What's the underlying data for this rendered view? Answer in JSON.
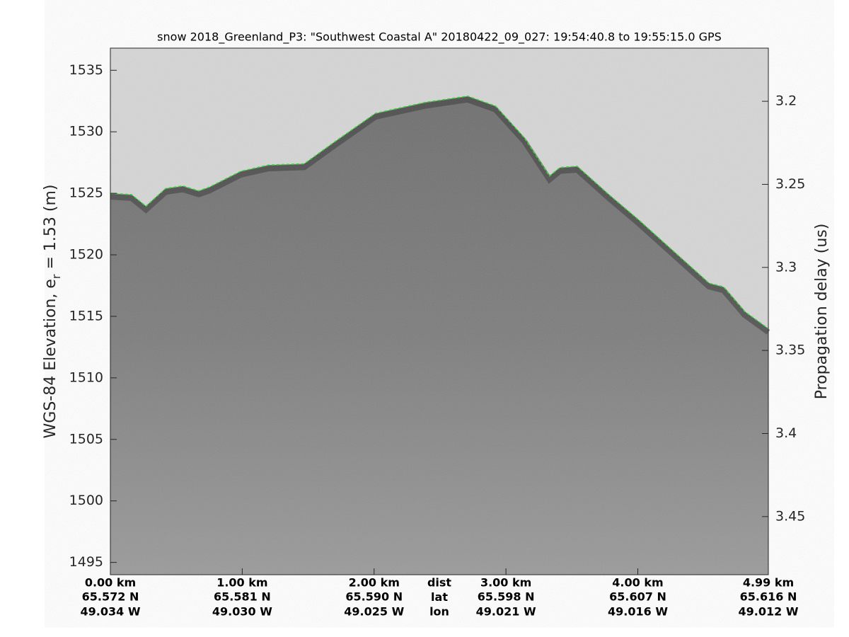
{
  "chart_data": {
    "type": "line",
    "title": "snow 2018_Greenland_P3: \"Southwest Coastal A\"  20180422_09_027: 19:54:40.8 to 19:55:15.0 GPS",
    "ylabel": [
      "WGS-84 Elevation, e",
      "r",
      " = 1.53 (m)"
    ],
    "y2label": "Propagation delay (us)",
    "x": [
      0,
      0.16,
      0.27,
      0.42,
      0.55,
      0.67,
      0.75,
      0.99,
      1.2,
      1.47,
      1.69,
      2.01,
      2.39,
      2.71,
      2.92,
      3.14,
      3.33,
      3.41,
      3.54,
      3.78,
      4.0,
      4.27,
      4.54,
      4.65,
      4.81,
      4.99
    ],
    "values": [
      1525.0,
      1524.9,
      1523.95,
      1525.4,
      1525.6,
      1525.2,
      1525.5,
      1526.8,
      1527.3,
      1527.4,
      1529.1,
      1531.5,
      1532.4,
      1532.9,
      1532.1,
      1529.5,
      1526.4,
      1527.1,
      1527.2,
      1524.9,
      1522.9,
      1520.3,
      1517.7,
      1517.4,
      1515.4,
      1514.0
    ],
    "color": "#22dd22",
    "xlim": [
      0,
      4.99
    ],
    "xticks": [
      {
        "value": 0,
        "label": "0.00 km"
      },
      {
        "value": 1,
        "label": "1.00 km"
      },
      {
        "value": 2,
        "label": "2.00 km"
      },
      {
        "value": 3,
        "label": "3.00 km"
      },
      {
        "value": 4,
        "label": "4.00 km"
      },
      {
        "value": 4.99,
        "label": "4.99 km"
      }
    ],
    "lat_labels": [
      "65.572 N",
      "65.581 N",
      "65.590 N",
      "65.598 N",
      "65.607 N",
      "65.616 N"
    ],
    "lon_labels": [
      "49.034 W",
      "49.030 W",
      "49.025 W",
      "49.021 W",
      "49.016 W",
      "49.012 W"
    ],
    "row_labels": [
      "dist",
      "lat",
      "lon"
    ],
    "ylim": [
      1494.0,
      1536.8
    ],
    "yticks": [
      1495,
      1500,
      1505,
      1510,
      1515,
      1520,
      1525,
      1530,
      1535
    ],
    "y2lim": [
      3.485,
      3.168
    ],
    "y2ticks": [
      3.2,
      3.25,
      3.3,
      3.35,
      3.4,
      3.45
    ]
  }
}
